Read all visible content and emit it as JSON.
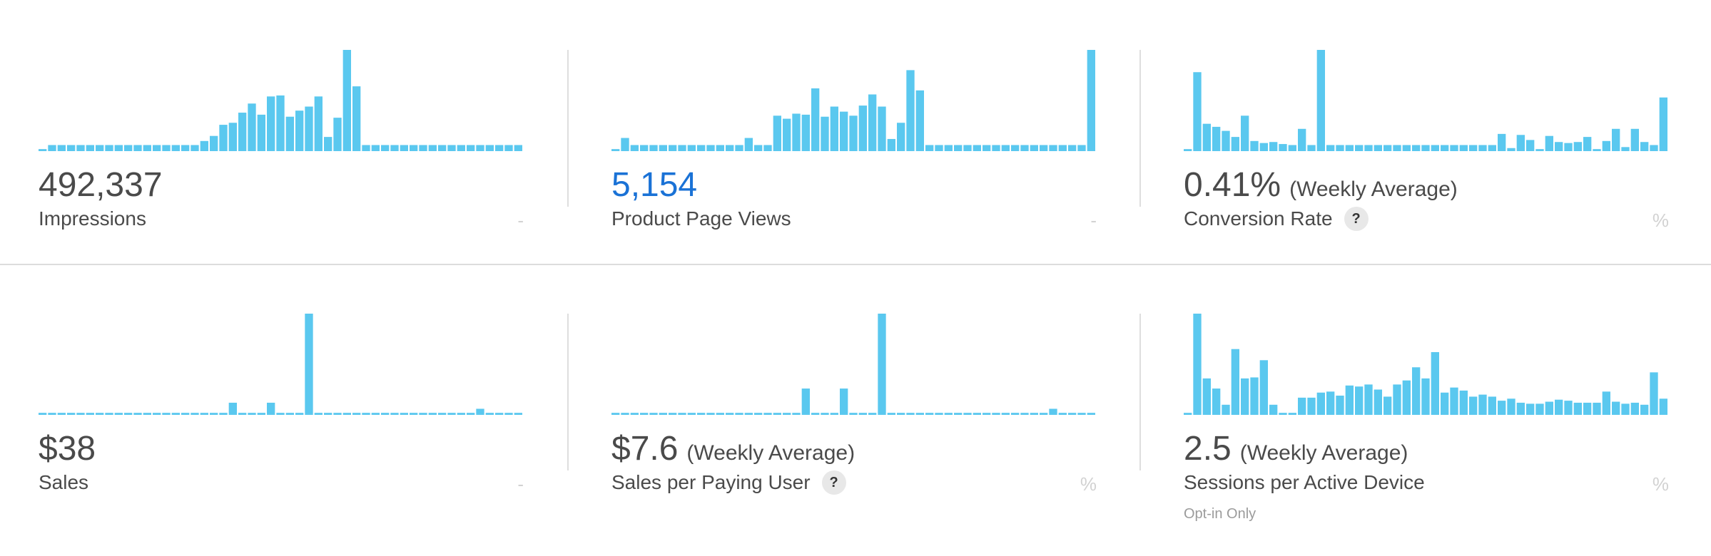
{
  "colors": {
    "bar": "#5ac8ef",
    "value_blue": "#1a72d6",
    "text": "#4a4a4a",
    "muted": "#d2d2d2",
    "divider": "#dedede"
  },
  "metrics": [
    {
      "value": "492,337",
      "suffix": "",
      "label": "Impressions",
      "help": false,
      "change": "-",
      "note": "",
      "highlight": false,
      "bars": [
        0.02,
        0.06,
        0.06,
        0.06,
        0.06,
        0.06,
        0.06,
        0.06,
        0.06,
        0.06,
        0.06,
        0.06,
        0.06,
        0.06,
        0.06,
        0.06,
        0.06,
        0.1,
        0.15,
        0.26,
        0.28,
        0.38,
        0.47,
        0.36,
        0.54,
        0.55,
        0.34,
        0.4,
        0.44,
        0.54,
        0.14,
        0.33,
        1.0,
        0.64,
        0.06,
        0.06,
        0.06,
        0.06,
        0.06,
        0.06,
        0.06,
        0.06,
        0.06,
        0.06,
        0.06,
        0.06,
        0.06,
        0.06,
        0.06,
        0.06,
        0.06
      ]
    },
    {
      "value": "5,154",
      "suffix": "",
      "label": "Product Page Views",
      "help": false,
      "change": "-",
      "note": "",
      "highlight": true,
      "bars": [
        0.02,
        0.13,
        0.06,
        0.06,
        0.06,
        0.06,
        0.06,
        0.06,
        0.06,
        0.06,
        0.06,
        0.06,
        0.06,
        0.06,
        0.13,
        0.06,
        0.06,
        0.35,
        0.32,
        0.37,
        0.36,
        0.62,
        0.34,
        0.44,
        0.39,
        0.35,
        0.45,
        0.56,
        0.44,
        0.12,
        0.28,
        0.8,
        0.6,
        0.06,
        0.06,
        0.06,
        0.06,
        0.06,
        0.06,
        0.06,
        0.06,
        0.06,
        0.06,
        0.06,
        0.06,
        0.06,
        0.06,
        0.06,
        0.06,
        0.06,
        1.0
      ]
    },
    {
      "value": "0.41%",
      "suffix": "(Weekly Average)",
      "label": "Conversion Rate",
      "help": true,
      "change": "%",
      "note": "",
      "highlight": false,
      "bars": [
        0.02,
        0.78,
        0.27,
        0.24,
        0.2,
        0.14,
        0.35,
        0.1,
        0.08,
        0.09,
        0.07,
        0.06,
        0.22,
        0.06,
        1.0,
        0.06,
        0.06,
        0.06,
        0.06,
        0.06,
        0.06,
        0.06,
        0.06,
        0.06,
        0.06,
        0.06,
        0.06,
        0.06,
        0.06,
        0.06,
        0.06,
        0.06,
        0.06,
        0.17,
        0.03,
        0.16,
        0.11,
        0.02,
        0.15,
        0.09,
        0.08,
        0.09,
        0.14,
        0.02,
        0.1,
        0.22,
        0.04,
        0.22,
        0.09,
        0.06,
        0.53
      ]
    },
    {
      "value": "$38",
      "suffix": "",
      "label": "Sales",
      "help": false,
      "change": "-",
      "note": "",
      "highlight": false,
      "bars": [
        0.02,
        0.02,
        0.02,
        0.02,
        0.02,
        0.02,
        0.02,
        0.02,
        0.02,
        0.02,
        0.02,
        0.02,
        0.02,
        0.02,
        0.02,
        0.02,
        0.02,
        0.02,
        0.02,
        0.02,
        0.12,
        0.02,
        0.02,
        0.02,
        0.12,
        0.02,
        0.02,
        0.02,
        1.0,
        0.02,
        0.02,
        0.02,
        0.02,
        0.02,
        0.02,
        0.02,
        0.02,
        0.02,
        0.02,
        0.02,
        0.02,
        0.02,
        0.02,
        0.02,
        0.02,
        0.02,
        0.06,
        0.02,
        0.02,
        0.02,
        0.02
      ]
    },
    {
      "value": "$7.6",
      "suffix": "(Weekly Average)",
      "label": "Sales per Paying User",
      "help": true,
      "change": "%",
      "note": "",
      "highlight": false,
      "bars": [
        0.02,
        0.02,
        0.02,
        0.02,
        0.02,
        0.02,
        0.02,
        0.02,
        0.02,
        0.02,
        0.02,
        0.02,
        0.02,
        0.02,
        0.02,
        0.02,
        0.02,
        0.02,
        0.02,
        0.02,
        0.26,
        0.02,
        0.02,
        0.02,
        0.26,
        0.02,
        0.02,
        0.02,
        1.0,
        0.02,
        0.02,
        0.02,
        0.02,
        0.02,
        0.02,
        0.02,
        0.02,
        0.02,
        0.02,
        0.02,
        0.02,
        0.02,
        0.02,
        0.02,
        0.02,
        0.02,
        0.06,
        0.02,
        0.02,
        0.02,
        0.02
      ]
    },
    {
      "value": "2.5",
      "suffix": "(Weekly Average)",
      "label": "Sessions per Active Device",
      "help": false,
      "change": "%",
      "note": "Opt-in Only",
      "highlight": false,
      "bars": [
        0.02,
        1.0,
        0.36,
        0.26,
        0.1,
        0.65,
        0.36,
        0.37,
        0.54,
        0.1,
        0.02,
        0.02,
        0.17,
        0.17,
        0.22,
        0.23,
        0.19,
        0.29,
        0.28,
        0.3,
        0.25,
        0.18,
        0.3,
        0.34,
        0.47,
        0.36,
        0.62,
        0.22,
        0.27,
        0.24,
        0.18,
        0.2,
        0.18,
        0.14,
        0.16,
        0.12,
        0.11,
        0.11,
        0.13,
        0.15,
        0.14,
        0.12,
        0.12,
        0.12,
        0.23,
        0.13,
        0.11,
        0.12,
        0.1,
        0.42,
        0.16
      ]
    }
  ]
}
